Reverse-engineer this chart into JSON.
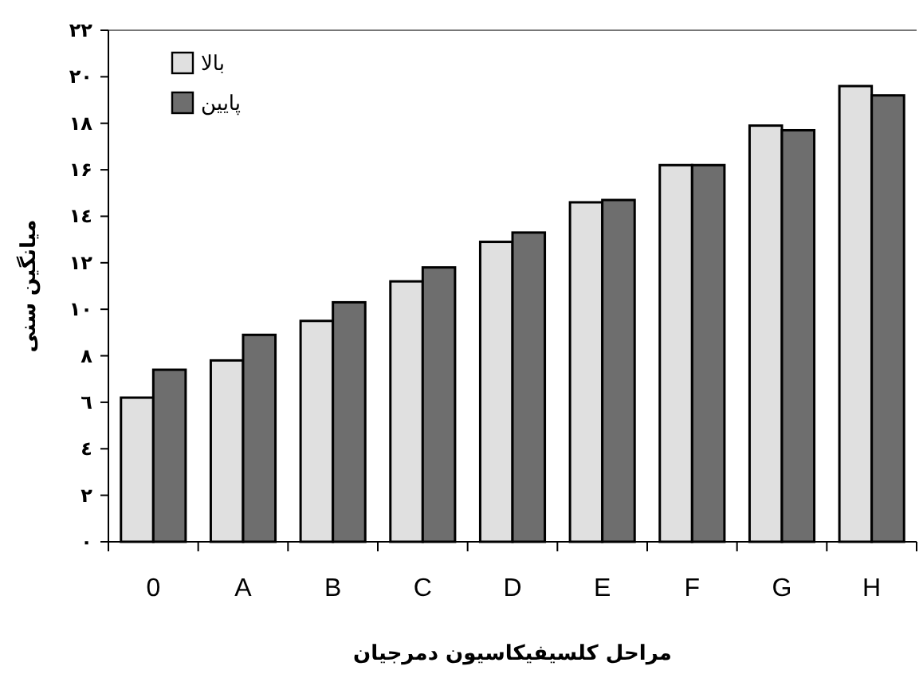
{
  "chart_data": {
    "type": "bar",
    "xlabel": "مراحل کلسیفیکاسیون دمرجیان",
    "ylabel": "میانگین سنی",
    "categories": [
      "0",
      "A",
      "B",
      "C",
      "D",
      "E",
      "F",
      "G",
      "H"
    ],
    "series": [
      {
        "name": "بالا",
        "color": "#e0e0e0",
        "values": [
          6.2,
          7.8,
          9.5,
          11.2,
          12.9,
          14.6,
          16.2,
          17.9,
          19.6
        ]
      },
      {
        "name": "پایین",
        "color": "#6e6e6e",
        "values": [
          7.4,
          8.9,
          10.3,
          11.8,
          13.3,
          14.7,
          16.2,
          17.7,
          19.2
        ]
      }
    ],
    "ylim": [
      0,
      22
    ],
    "yticks": [
      {
        "value": 0,
        "label": "۰"
      },
      {
        "value": 2,
        "label": "۲"
      },
      {
        "value": 4,
        "label": "٤"
      },
      {
        "value": 6,
        "label": "٦"
      },
      {
        "value": 8,
        "label": "۸"
      },
      {
        "value": 10,
        "label": "۱۰"
      },
      {
        "value": 12,
        "label": "۱۲"
      },
      {
        "value": 14,
        "label": "۱٤"
      },
      {
        "value": 16,
        "label": "۱۶"
      },
      {
        "value": 18,
        "label": "۱۸"
      },
      {
        "value": 20,
        "label": "۲۰"
      },
      {
        "value": 22,
        "label": "۲۲"
      }
    ],
    "legend": "top left"
  }
}
